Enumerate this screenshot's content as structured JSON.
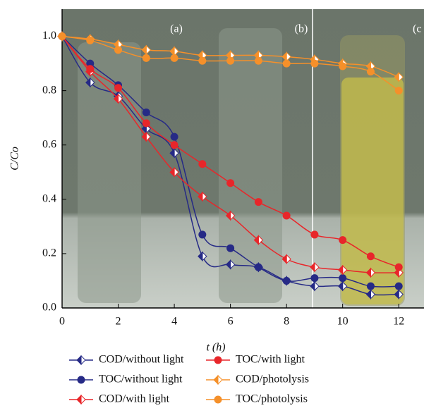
{
  "chart_data": {
    "type": "line",
    "xlabel": "t (h)",
    "ylabel": "C/Co",
    "annotations": [
      "(a)",
      "(b)",
      "(c"
    ],
    "x": [
      0,
      1,
      2,
      3,
      4,
      5,
      6,
      7,
      8,
      9,
      10,
      11,
      12
    ],
    "xlim": [
      0,
      12.9
    ],
    "ylim": [
      0,
      1.1
    ],
    "xticks": [
      0,
      2,
      4,
      6,
      8,
      10,
      12
    ],
    "yticks": [
      {
        "value": 0,
        "label": "0.0"
      },
      0.2,
      0.4,
      0.6,
      0.8,
      {
        "value": 1,
        "label": "1.0"
      }
    ],
    "series": [
      {
        "name": "COD/without light",
        "color": "#262a86",
        "marker": "half-diamond",
        "values": [
          1.0,
          0.83,
          0.78,
          0.66,
          0.57,
          0.19,
          0.16,
          0.15,
          0.1,
          0.08,
          0.08,
          0.05,
          0.05
        ]
      },
      {
        "name": "TOC/without light",
        "color": "#262a86",
        "marker": "circle",
        "values": [
          1.0,
          0.9,
          0.82,
          0.72,
          0.63,
          0.27,
          0.22,
          0.15,
          0.1,
          0.11,
          0.11,
          0.08,
          0.08
        ]
      },
      {
        "name": "COD/with light",
        "color": "#e8262a",
        "marker": "half-diamond",
        "values": [
          1.0,
          0.87,
          0.77,
          0.63,
          0.5,
          0.41,
          0.34,
          0.25,
          0.18,
          0.15,
          0.14,
          0.13,
          0.13
        ]
      },
      {
        "name": "TOC/with light",
        "color": "#e8262a",
        "marker": "circle",
        "values": [
          1.0,
          0.88,
          0.81,
          0.68,
          0.6,
          0.53,
          0.46,
          0.39,
          0.34,
          0.27,
          0.25,
          0.19,
          0.15
        ]
      },
      {
        "name": "COD/photolysis",
        "color": "#f5902a",
        "marker": "half-diamond",
        "values": [
          1.0,
          0.99,
          0.97,
          0.95,
          0.945,
          0.93,
          0.93,
          0.93,
          0.925,
          0.915,
          0.9,
          0.89,
          0.85
        ]
      },
      {
        "name": "TOC/photolysis",
        "color": "#f5902a",
        "marker": "circle",
        "values": [
          1.0,
          0.985,
          0.95,
          0.92,
          0.92,
          0.91,
          0.91,
          0.91,
          0.9,
          0.9,
          0.89,
          0.87,
          0.8
        ]
      }
    ]
  }
}
